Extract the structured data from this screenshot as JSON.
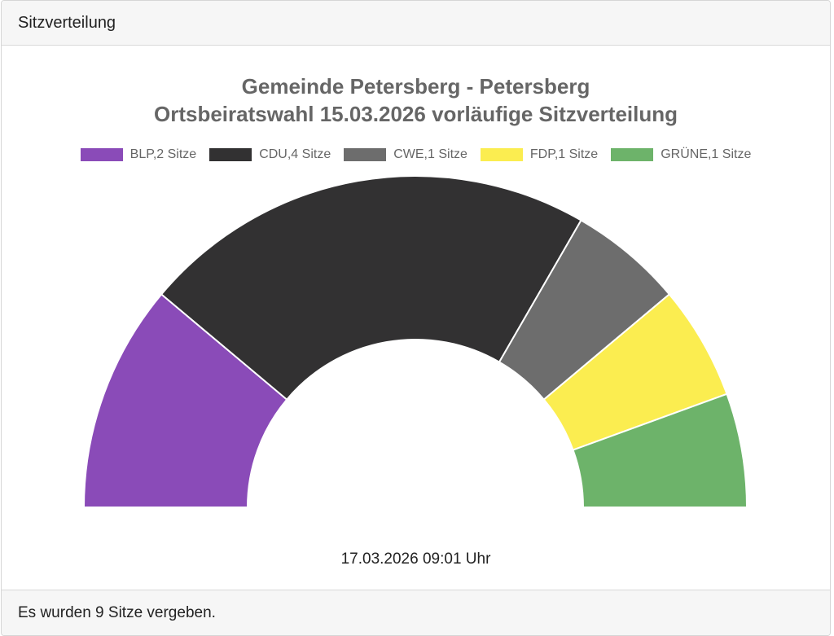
{
  "header": {
    "title": "Sitzverteilung"
  },
  "chart_data": {
    "type": "pie",
    "variant": "semi-doughnut",
    "title_lines": [
      "Gemeinde Petersberg - Petersberg",
      "Ortsbeiratswahl 15.03.2026 vorläufige Sitzverteilung"
    ],
    "legend_position": "top",
    "categories": [
      "BLP",
      "CDU",
      "CWE",
      "FDP",
      "GRÜNE"
    ],
    "values": [
      2,
      4,
      1,
      1,
      1
    ],
    "legend_labels": [
      "BLP,2 Sitze",
      "CDU,4 Sitze",
      "CWE,1 Sitze",
      "FDP,1 Sitze",
      "GRÜNE,1 Sitze"
    ],
    "colors": [
      "#8a4bb8",
      "#323132",
      "#6d6d6d",
      "#fbed50",
      "#6db36a"
    ]
  },
  "timestamp": "17.03.2026 09:01 Uhr",
  "footer": {
    "text": "Es wurden 9 Sitze vergeben."
  }
}
